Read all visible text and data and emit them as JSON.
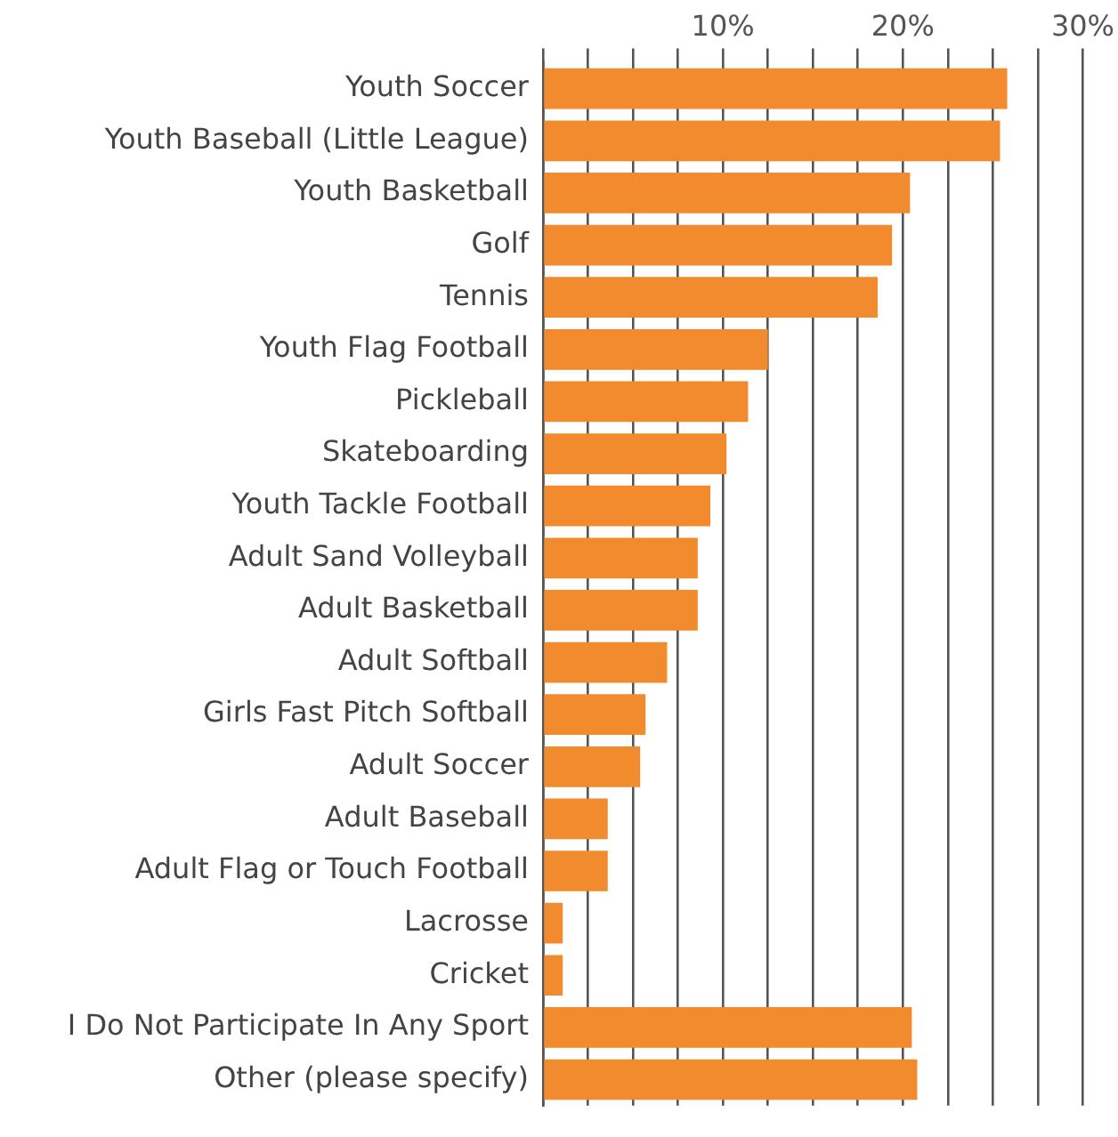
{
  "chart_data": {
    "type": "bar",
    "orientation": "horizontal",
    "categories": [
      "Youth Soccer",
      "Youth Baseball (Little League)",
      "Youth Basketball",
      "Golf",
      "Tennis",
      "Youth Flag Football",
      "Pickleball",
      "Skateboarding",
      "Youth Tackle Football",
      "Adult Sand Volleyball",
      "Adult Basketball",
      "Adult Softball",
      "Girls Fast Pitch Softball",
      "Adult Soccer",
      "Adult Baseball",
      "Adult Flag or Touch Football",
      "Lacrosse",
      "Cricket",
      "I Do Not Participate In Any Sport",
      "Other (please specify)"
    ],
    "values": [
      25.8,
      25.4,
      20.4,
      19.4,
      18.6,
      12.5,
      11.4,
      10.2,
      9.3,
      8.6,
      8.6,
      6.9,
      5.7,
      5.4,
      3.6,
      3.6,
      1.1,
      1.1,
      20.5,
      20.8
    ],
    "color": "#f28a2e",
    "xlim": [
      0,
      30
    ],
    "xticks": [
      {
        "value": 0,
        "label": null
      },
      {
        "value": 2.5,
        "label": null
      },
      {
        "value": 5,
        "label": null
      },
      {
        "value": 7.5,
        "label": null
      },
      {
        "value": 10,
        "label": "10%"
      },
      {
        "value": 12.5,
        "label": null
      },
      {
        "value": 15,
        "label": null
      },
      {
        "value": 17.5,
        "label": null
      },
      {
        "value": 20,
        "label": "20%"
      },
      {
        "value": 22.5,
        "label": null
      },
      {
        "value": 25,
        "label": null
      },
      {
        "value": 27.5,
        "label": null
      },
      {
        "value": 30,
        "label": "30%"
      }
    ],
    "grid": "x",
    "legend": false
  }
}
